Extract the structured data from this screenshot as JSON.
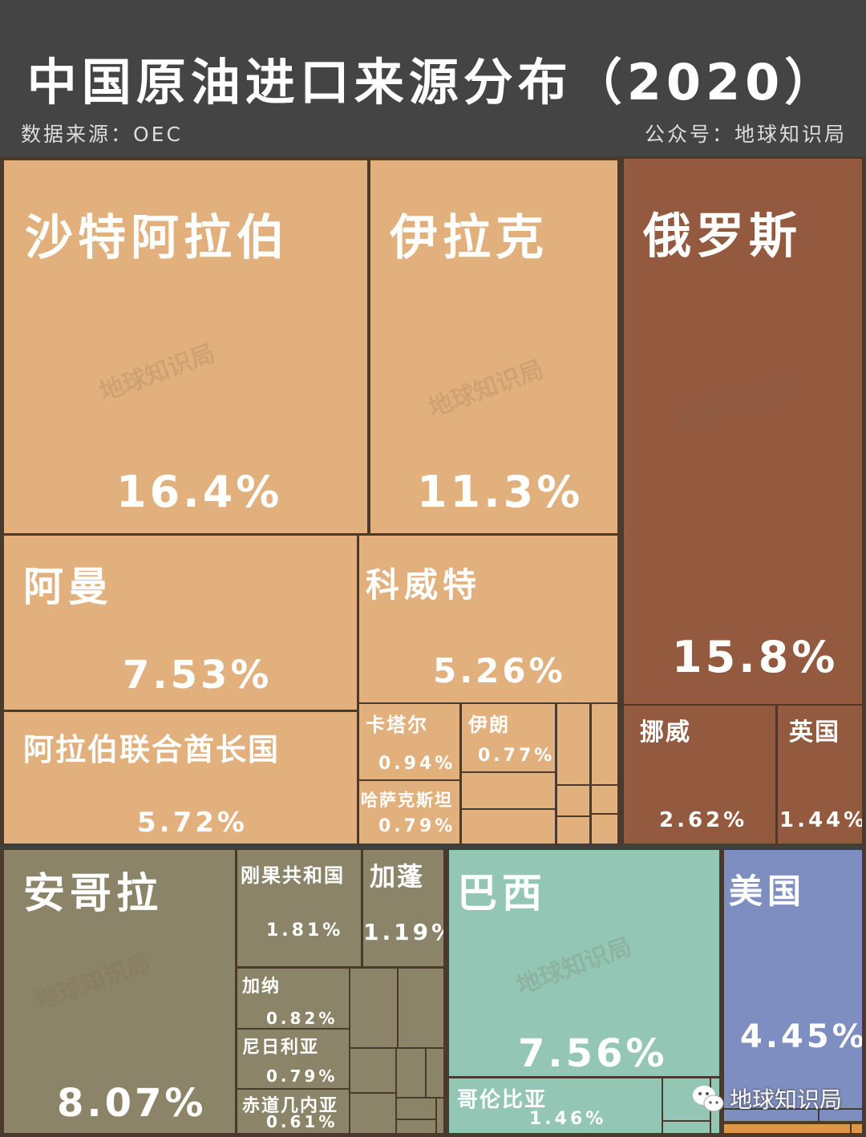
{
  "header": {
    "title": "中国原油进口来源分布（2020）",
    "source": "数据来源：OEC",
    "account": "公众号：地球知识局"
  },
  "watermark": "地球知识局",
  "wechat_badge": "地球知识局",
  "colors": {
    "middle_east": "#e2b07c",
    "russia_europe": "#935a3f",
    "africa": "#8b8468",
    "south_america": "#93c6b4",
    "north_america": "#7f8ec0",
    "other": "#e0954a"
  },
  "chart_data": {
    "type": "treemap",
    "title": "中国原油进口来源分布（2020）",
    "unit": "%",
    "items": [
      {
        "name": "沙特阿拉伯",
        "value": 16.4,
        "label": "16.4%",
        "group": "middle_east"
      },
      {
        "name": "伊拉克",
        "value": 11.3,
        "label": "11.3%",
        "group": "middle_east"
      },
      {
        "name": "阿曼",
        "value": 7.53,
        "label": "7.53%",
        "group": "middle_east"
      },
      {
        "name": "科威特",
        "value": 5.26,
        "label": "5.26%",
        "group": "middle_east"
      },
      {
        "name": "阿拉伯联合酋长国",
        "value": 5.72,
        "label": "5.72%",
        "group": "middle_east"
      },
      {
        "name": "卡塔尔",
        "value": 0.94,
        "label": "0.94%",
        "group": "middle_east"
      },
      {
        "name": "伊朗",
        "value": 0.77,
        "label": "0.77%",
        "group": "middle_east"
      },
      {
        "name": "哈萨克斯坦",
        "value": 0.79,
        "label": "0.79%",
        "group": "middle_east"
      },
      {
        "name": "俄罗斯",
        "value": 15.8,
        "label": "15.8%",
        "group": "russia_europe"
      },
      {
        "name": "挪威",
        "value": 2.62,
        "label": "2.62%",
        "group": "russia_europe"
      },
      {
        "name": "英国",
        "value": 1.44,
        "label": "1.44%",
        "group": "russia_europe"
      },
      {
        "name": "安哥拉",
        "value": 8.07,
        "label": "8.07%",
        "group": "africa"
      },
      {
        "name": "刚果共和国",
        "value": 1.81,
        "label": "1.81%",
        "group": "africa"
      },
      {
        "name": "加蓬",
        "value": 1.19,
        "label": "1.19%",
        "group": "africa"
      },
      {
        "name": "加纳",
        "value": 0.82,
        "label": "0.82%",
        "group": "africa"
      },
      {
        "name": "尼日利亚",
        "value": 0.79,
        "label": "0.79%",
        "group": "africa"
      },
      {
        "name": "赤道几内亚",
        "value": 0.61,
        "label": "0.61%",
        "group": "africa"
      },
      {
        "name": "巴西",
        "value": 7.56,
        "label": "7.56%",
        "group": "south_america"
      },
      {
        "name": "哥伦比亚",
        "value": 1.46,
        "label": "1.46%",
        "group": "south_america"
      },
      {
        "name": "美国",
        "value": 4.45,
        "label": "4.45%",
        "group": "north_america"
      }
    ]
  }
}
